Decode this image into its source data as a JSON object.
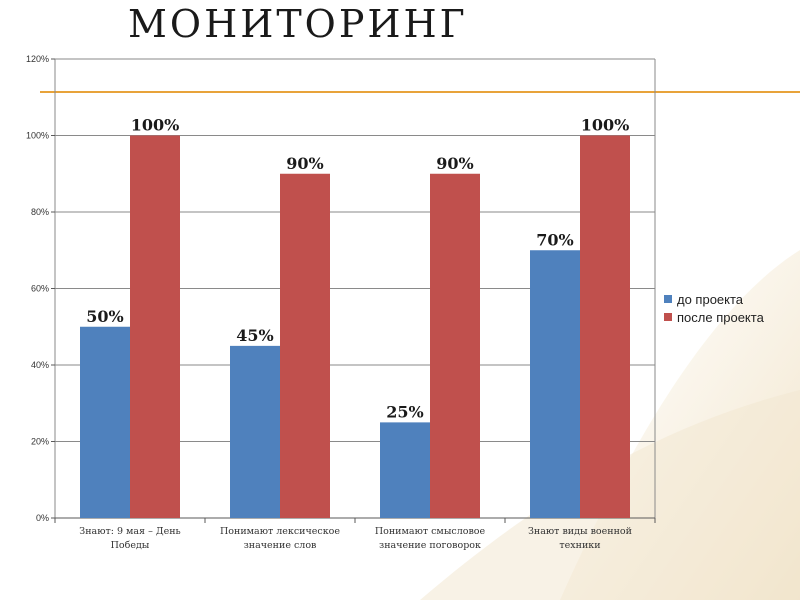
{
  "slide": {
    "title": "МОНИТОРИНГ"
  },
  "colors": {
    "before": "#4f81bd",
    "after": "#c0504d",
    "accent": "#e8a33a",
    "grid": "#8a8a8a"
  },
  "chart_data": {
    "type": "bar",
    "title": "",
    "xlabel": "",
    "ylabel": "",
    "ylim": [
      0,
      120
    ],
    "yticks": [
      0,
      20,
      40,
      60,
      80,
      100,
      120
    ],
    "ytick_labels": [
      "0%",
      "20%",
      "40%",
      "60%",
      "80%",
      "100%",
      "120%"
    ],
    "grid": true,
    "legend_position": "right",
    "categories": [
      [
        "Знают: 9 мая – День",
        "Победы"
      ],
      [
        "Понимают лексическое",
        "значение слов"
      ],
      [
        "Понимают смысловое",
        "значение поговорок"
      ],
      [
        "Знают  виды военной",
        "техники"
      ]
    ],
    "series": [
      {
        "name": "до проекта",
        "values": [
          50,
          45,
          25,
          70
        ],
        "labels": [
          "50%",
          "45%",
          "25%",
          "70%"
        ],
        "color": "#4f81bd"
      },
      {
        "name": "после проекта",
        "values": [
          100,
          90,
          90,
          100
        ],
        "labels": [
          "100%",
          "90%",
          "90%",
          "100%"
        ],
        "color": "#c0504d"
      }
    ]
  }
}
